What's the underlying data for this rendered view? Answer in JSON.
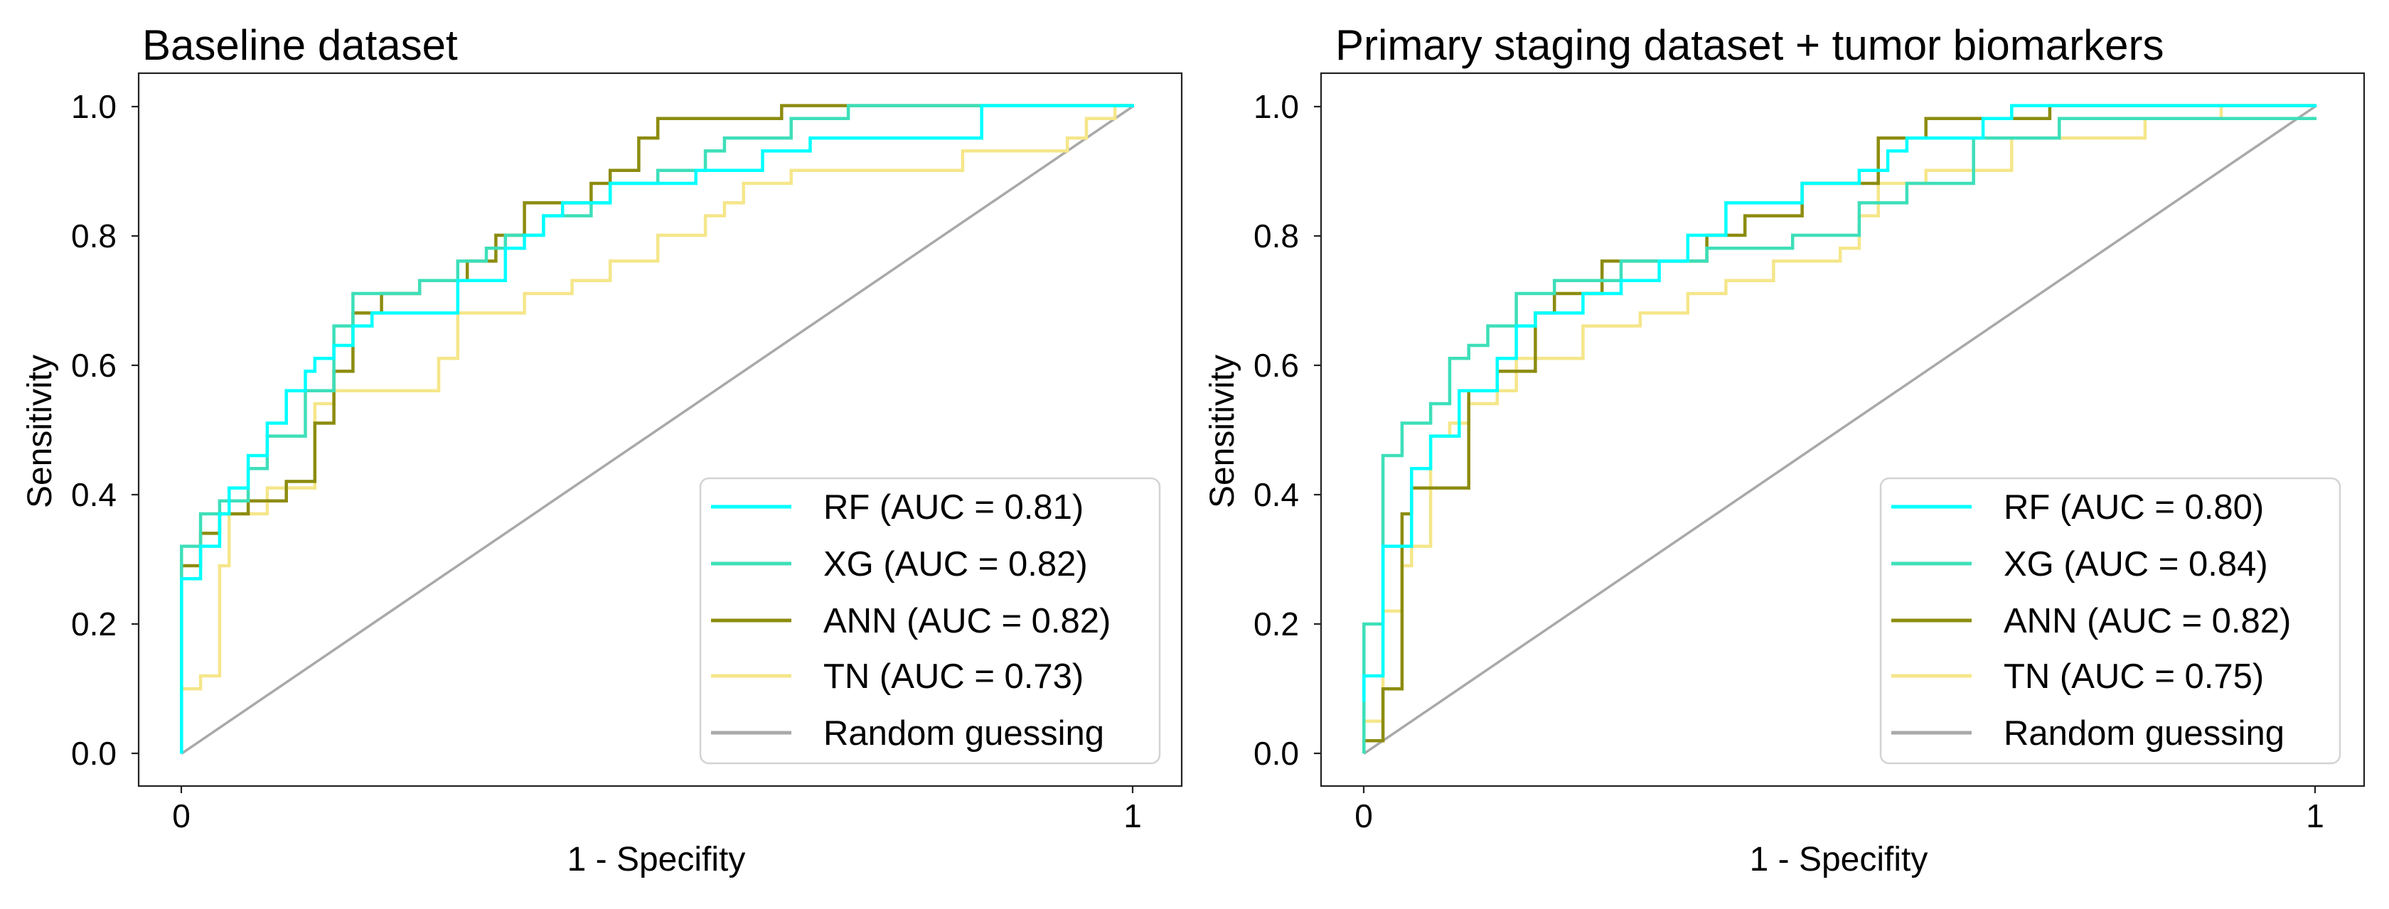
{
  "colors": {
    "RF": "#00ffff",
    "XG": "#3ddfb9",
    "ANN": "#8c8c10",
    "TN": "#f5e68a",
    "random": "#a9a9a9"
  },
  "chart_data": [
    {
      "type": "line",
      "title": "Baseline dataset",
      "xlabel": "1 - Specifity",
      "ylabel": "Sensitivity",
      "xlim": [
        -0.045,
        1.05
      ],
      "ylim": [
        -0.05,
        1.05
      ],
      "xticks": [
        0,
        1
      ],
      "xtick_labels": [
        "0",
        "1"
      ],
      "yticks": [
        0.0,
        0.2,
        0.4,
        0.6,
        0.8,
        1.0
      ],
      "ytick_labels": [
        "0.0",
        "0.2",
        "0.4",
        "0.6",
        "0.8",
        "1.0"
      ],
      "grid": false,
      "legend_position": "lower-right",
      "series": [
        {
          "key": "RF",
          "name": "RF (AUC = 0.81)",
          "x": [
            0,
            0,
            0.02,
            0.02,
            0.04,
            0.04,
            0.05,
            0.05,
            0.07,
            0.07,
            0.09,
            0.09,
            0.11,
            0.11,
            0.13,
            0.13,
            0.14,
            0.14,
            0.16,
            0.16,
            0.18,
            0.18,
            0.2,
            0.2,
            0.29,
            0.29,
            0.34,
            0.34,
            0.36,
            0.36,
            0.38,
            0.38,
            0.4,
            0.4,
            0.45,
            0.45,
            0.54,
            0.54,
            0.61,
            0.61,
            0.66,
            0.66,
            0.73,
            0.73,
            0.84,
            0.84,
            1.0
          ],
          "y": [
            0,
            0.27,
            0.27,
            0.32,
            0.32,
            0.37,
            0.37,
            0.41,
            0.41,
            0.46,
            0.46,
            0.51,
            0.51,
            0.56,
            0.56,
            0.59,
            0.59,
            0.61,
            0.61,
            0.63,
            0.63,
            0.66,
            0.66,
            0.68,
            0.68,
            0.73,
            0.73,
            0.78,
            0.78,
            0.8,
            0.8,
            0.83,
            0.83,
            0.85,
            0.85,
            0.88,
            0.88,
            0.9,
            0.9,
            0.93,
            0.93,
            0.95,
            0.95,
            0.95,
            0.95,
            1.0,
            1.0
          ]
        },
        {
          "key": "XG",
          "name": "XG (AUC = 0.82)",
          "x": [
            0,
            0,
            0.02,
            0.02,
            0.04,
            0.04,
            0.07,
            0.07,
            0.09,
            0.09,
            0.13,
            0.13,
            0.16,
            0.16,
            0.18,
            0.18,
            0.25,
            0.25,
            0.29,
            0.29,
            0.32,
            0.32,
            0.34,
            0.34,
            0.38,
            0.38,
            0.43,
            0.43,
            0.45,
            0.45,
            0.5,
            0.5,
            0.55,
            0.55,
            0.57,
            0.57,
            0.64,
            0.64,
            0.7,
            0.7,
            1.0
          ],
          "y": [
            0,
            0.32,
            0.32,
            0.37,
            0.37,
            0.39,
            0.39,
            0.44,
            0.44,
            0.49,
            0.49,
            0.56,
            0.56,
            0.66,
            0.66,
            0.71,
            0.71,
            0.73,
            0.73,
            0.76,
            0.76,
            0.78,
            0.78,
            0.8,
            0.8,
            0.83,
            0.83,
            0.85,
            0.85,
            0.88,
            0.88,
            0.9,
            0.9,
            0.93,
            0.93,
            0.95,
            0.95,
            0.98,
            0.98,
            1.0,
            1.0
          ]
        },
        {
          "key": "ANN",
          "name": "ANN (AUC = 0.82)",
          "x": [
            0,
            0,
            0.02,
            0.02,
            0.04,
            0.04,
            0.07,
            0.07,
            0.11,
            0.11,
            0.14,
            0.14,
            0.16,
            0.16,
            0.18,
            0.18,
            0.21,
            0.21,
            0.25,
            0.25,
            0.3,
            0.3,
            0.33,
            0.33,
            0.36,
            0.36,
            0.43,
            0.43,
            0.45,
            0.45,
            0.48,
            0.48,
            0.5,
            0.5,
            0.52,
            0.52,
            0.55,
            0.55,
            0.63,
            0.63,
            1.0
          ],
          "y": [
            0.1,
            0.29,
            0.29,
            0.34,
            0.34,
            0.37,
            0.37,
            0.39,
            0.39,
            0.42,
            0.42,
            0.51,
            0.51,
            0.59,
            0.59,
            0.68,
            0.68,
            0.71,
            0.71,
            0.73,
            0.73,
            0.76,
            0.76,
            0.8,
            0.8,
            0.85,
            0.85,
            0.88,
            0.88,
            0.9,
            0.9,
            0.95,
            0.95,
            0.98,
            0.98,
            0.98,
            0.98,
            0.98,
            0.98,
            1.0,
            1.0
          ]
        },
        {
          "key": "TN",
          "name": "TN (AUC = 0.73)",
          "x": [
            0,
            0,
            0.02,
            0.02,
            0.04,
            0.04,
            0.05,
            0.05,
            0.09,
            0.09,
            0.14,
            0.14,
            0.16,
            0.16,
            0.27,
            0.27,
            0.29,
            0.29,
            0.36,
            0.36,
            0.41,
            0.41,
            0.45,
            0.45,
            0.5,
            0.5,
            0.55,
            0.55,
            0.57,
            0.57,
            0.59,
            0.59,
            0.64,
            0.64,
            0.82,
            0.82,
            0.93,
            0.93,
            0.95,
            0.95,
            0.98,
            0.98,
            1.0
          ],
          "y": [
            0,
            0.1,
            0.1,
            0.12,
            0.12,
            0.29,
            0.29,
            0.37,
            0.37,
            0.41,
            0.41,
            0.54,
            0.54,
            0.56,
            0.56,
            0.61,
            0.61,
            0.68,
            0.68,
            0.71,
            0.71,
            0.73,
            0.73,
            0.76,
            0.76,
            0.8,
            0.8,
            0.83,
            0.83,
            0.85,
            0.85,
            0.88,
            0.88,
            0.9,
            0.9,
            0.93,
            0.93,
            0.95,
            0.95,
            0.98,
            0.98,
            1.0,
            1.0
          ]
        },
        {
          "key": "random",
          "name": "Random guessing",
          "x": [
            0,
            1
          ],
          "y": [
            0,
            1
          ]
        }
      ]
    },
    {
      "type": "line",
      "title": "Primary staging dataset + tumor biomarkers",
      "xlabel": "1 - Specifity",
      "ylabel": "Sensitivity",
      "xlim": [
        -0.045,
        1.05
      ],
      "ylim": [
        -0.05,
        1.05
      ],
      "xticks": [
        0,
        1
      ],
      "xtick_labels": [
        "0",
        "1"
      ],
      "yticks": [
        0.0,
        0.2,
        0.4,
        0.6,
        0.8,
        1.0
      ],
      "ytick_labels": [
        "0.0",
        "0.2",
        "0.4",
        "0.6",
        "0.8",
        "1.0"
      ],
      "grid": false,
      "legend_position": "lower-right",
      "series": [
        {
          "key": "RF",
          "name": "RF (AUC = 0.80)",
          "x": [
            0,
            0,
            0.02,
            0.02,
            0.05,
            0.05,
            0.07,
            0.07,
            0.1,
            0.1,
            0.14,
            0.14,
            0.16,
            0.16,
            0.18,
            0.18,
            0.23,
            0.23,
            0.27,
            0.27,
            0.31,
            0.31,
            0.34,
            0.34,
            0.38,
            0.38,
            0.46,
            0.46,
            0.52,
            0.52,
            0.55,
            0.55,
            0.57,
            0.57,
            0.65,
            0.65,
            0.68,
            0.68,
            1.0
          ],
          "y": [
            0.08,
            0.12,
            0.12,
            0.32,
            0.32,
            0.44,
            0.44,
            0.49,
            0.49,
            0.56,
            0.56,
            0.61,
            0.61,
            0.66,
            0.66,
            0.68,
            0.68,
            0.71,
            0.71,
            0.73,
            0.73,
            0.76,
            0.76,
            0.8,
            0.8,
            0.85,
            0.85,
            0.88,
            0.88,
            0.9,
            0.9,
            0.93,
            0.93,
            0.95,
            0.95,
            0.98,
            0.98,
            1.0,
            1.0
          ]
        },
        {
          "key": "XG",
          "name": "XG (AUC = 0.84)",
          "x": [
            0,
            0,
            0.02,
            0.02,
            0.04,
            0.04,
            0.07,
            0.07,
            0.09,
            0.09,
            0.11,
            0.11,
            0.13,
            0.13,
            0.16,
            0.16,
            0.2,
            0.2,
            0.27,
            0.27,
            0.36,
            0.36,
            0.45,
            0.45,
            0.52,
            0.52,
            0.57,
            0.57,
            0.64,
            0.64,
            0.73,
            0.73,
            1.0
          ],
          "y": [
            0,
            0.2,
            0.2,
            0.46,
            0.46,
            0.51,
            0.51,
            0.54,
            0.54,
            0.61,
            0.61,
            0.63,
            0.63,
            0.66,
            0.66,
            0.71,
            0.71,
            0.73,
            0.73,
            0.76,
            0.76,
            0.78,
            0.78,
            0.8,
            0.8,
            0.85,
            0.85,
            0.88,
            0.88,
            0.95,
            0.95,
            0.98,
            0.98
          ]
        },
        {
          "key": "ANN",
          "name": "ANN (AUC = 0.82)",
          "x": [
            0,
            0,
            0.02,
            0.02,
            0.04,
            0.04,
            0.05,
            0.05,
            0.11,
            0.11,
            0.14,
            0.14,
            0.18,
            0.18,
            0.2,
            0.2,
            0.25,
            0.25,
            0.36,
            0.36,
            0.4,
            0.4,
            0.46,
            0.46,
            0.54,
            0.54,
            0.59,
            0.59,
            0.64,
            0.64,
            0.72,
            0.72,
            1.0
          ],
          "y": [
            0.02,
            0.02,
            0.02,
            0.1,
            0.1,
            0.37,
            0.37,
            0.41,
            0.41,
            0.56,
            0.56,
            0.59,
            0.59,
            0.68,
            0.68,
            0.71,
            0.71,
            0.76,
            0.76,
            0.8,
            0.8,
            0.83,
            0.83,
            0.88,
            0.88,
            0.95,
            0.95,
            0.98,
            0.98,
            0.98,
            0.98,
            1.0,
            1.0
          ]
        },
        {
          "key": "TN",
          "name": "TN (AUC = 0.75)",
          "x": [
            0,
            0,
            0.02,
            0.02,
            0.04,
            0.04,
            0.05,
            0.05,
            0.07,
            0.07,
            0.09,
            0.09,
            0.11,
            0.11,
            0.14,
            0.14,
            0.16,
            0.16,
            0.23,
            0.23,
            0.29,
            0.29,
            0.34,
            0.34,
            0.38,
            0.38,
            0.43,
            0.43,
            0.5,
            0.5,
            0.52,
            0.52,
            0.54,
            0.54,
            0.59,
            0.59,
            0.68,
            0.68,
            0.82,
            0.82,
            0.9,
            0.9,
            1.0
          ],
          "y": [
            0,
            0.05,
            0.05,
            0.22,
            0.22,
            0.29,
            0.29,
            0.32,
            0.32,
            0.49,
            0.49,
            0.51,
            0.51,
            0.54,
            0.54,
            0.56,
            0.56,
            0.61,
            0.61,
            0.66,
            0.66,
            0.68,
            0.68,
            0.71,
            0.71,
            0.73,
            0.73,
            0.76,
            0.76,
            0.78,
            0.78,
            0.83,
            0.83,
            0.88,
            0.88,
            0.9,
            0.9,
            0.95,
            0.95,
            0.98,
            0.98,
            1.0,
            1.0
          ]
        },
        {
          "key": "random",
          "name": "Random guessing",
          "x": [
            0,
            1
          ],
          "y": [
            0,
            1
          ]
        }
      ]
    }
  ]
}
